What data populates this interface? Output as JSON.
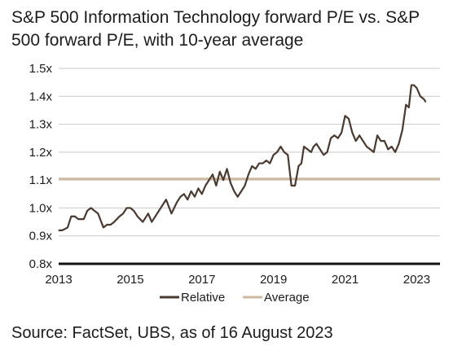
{
  "chart_data": {
    "type": "line",
    "title": "S&P 500 Information Technology forward P/E vs. S&P 500 forward P/E, with 10-year average",
    "xlabel": "",
    "ylabel": "",
    "xlim": [
      2013.0,
      2023.65
    ],
    "ylim": [
      0.8,
      1.5
    ],
    "x_ticks": [
      2013,
      2015,
      2017,
      2019,
      2021,
      2023
    ],
    "x_tick_labels": [
      "2013",
      "2015",
      "2017",
      "2019",
      "2021",
      "2023"
    ],
    "y_ticks": [
      0.8,
      0.9,
      1.0,
      1.1,
      1.2,
      1.3,
      1.4,
      1.5
    ],
    "y_tick_labels": [
      "0.8x",
      "0.9x",
      "1.0x",
      "1.1x",
      "1.2x",
      "1.3x",
      "1.4x",
      "1.5x"
    ],
    "grid": "horizontal",
    "legend_position": "bottom",
    "series": [
      {
        "name": "Relative",
        "color": "#4a3a30",
        "x": [
          2013.0,
          2013.1,
          2013.25,
          2013.35,
          2013.45,
          2013.55,
          2013.7,
          2013.8,
          2013.9,
          2014.0,
          2014.1,
          2014.25,
          2014.35,
          2014.45,
          2014.55,
          2014.7,
          2014.8,
          2014.9,
          2015.0,
          2015.1,
          2015.2,
          2015.35,
          2015.5,
          2015.6,
          2015.7,
          2015.8,
          2015.9,
          2016.0,
          2016.15,
          2016.3,
          2016.4,
          2016.5,
          2016.6,
          2016.7,
          2016.8,
          2016.9,
          2017.0,
          2017.1,
          2017.2,
          2017.3,
          2017.4,
          2017.5,
          2017.6,
          2017.7,
          2017.8,
          2017.9,
          2018.0,
          2018.1,
          2018.2,
          2018.3,
          2018.4,
          2018.5,
          2018.6,
          2018.7,
          2018.8,
          2018.9,
          2019.0,
          2019.1,
          2019.2,
          2019.3,
          2019.4,
          2019.5,
          2019.6,
          2019.7,
          2019.78,
          2019.85,
          2019.95,
          2020.05,
          2020.12,
          2020.2,
          2020.3,
          2020.4,
          2020.5,
          2020.6,
          2020.7,
          2020.8,
          2020.9,
          2021.0,
          2021.1,
          2021.2,
          2021.3,
          2021.4,
          2021.5,
          2021.6,
          2021.7,
          2021.8,
          2021.9,
          2022.0,
          2022.1,
          2022.2,
          2022.3,
          2022.4,
          2022.5,
          2022.6,
          2022.7,
          2022.78,
          2022.85,
          2022.92,
          2023.0,
          2023.1,
          2023.2,
          2023.25
        ],
        "y": [
          0.92,
          0.92,
          0.93,
          0.97,
          0.97,
          0.96,
          0.96,
          0.99,
          1.0,
          0.99,
          0.98,
          0.93,
          0.94,
          0.94,
          0.95,
          0.97,
          0.98,
          1.0,
          1.0,
          0.99,
          0.97,
          0.95,
          0.98,
          0.95,
          0.97,
          0.99,
          1.01,
          1.03,
          0.98,
          1.02,
          1.04,
          1.05,
          1.03,
          1.06,
          1.04,
          1.07,
          1.05,
          1.08,
          1.1,
          1.12,
          1.08,
          1.13,
          1.1,
          1.14,
          1.09,
          1.06,
          1.04,
          1.06,
          1.08,
          1.12,
          1.15,
          1.14,
          1.16,
          1.16,
          1.17,
          1.16,
          1.19,
          1.2,
          1.22,
          1.2,
          1.19,
          1.08,
          1.08,
          1.15,
          1.16,
          1.22,
          1.21,
          1.2,
          1.22,
          1.23,
          1.21,
          1.19,
          1.2,
          1.25,
          1.26,
          1.25,
          1.27,
          1.33,
          1.32,
          1.27,
          1.24,
          1.26,
          1.24,
          1.22,
          1.21,
          1.2,
          1.26,
          1.24,
          1.24,
          1.21,
          1.22,
          1.2,
          1.23,
          1.28,
          1.37,
          1.36,
          1.44,
          1.44,
          1.43,
          1.4,
          1.39,
          1.38
        ]
      },
      {
        "name": "Average",
        "color": "#cbb89f",
        "x": [
          2013.0,
          2023.65
        ],
        "y": [
          1.104,
          1.104
        ]
      }
    ],
    "source": "Source: FactSet, UBS, as of 16 August 2023"
  }
}
